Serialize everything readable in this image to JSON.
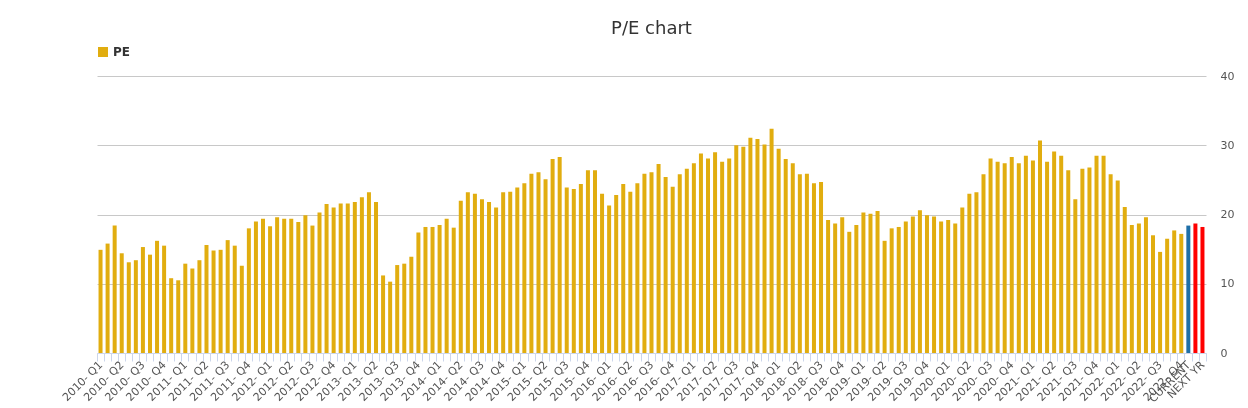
{
  "chart_data": {
    "type": "bar",
    "title": "P/E chart",
    "categories": [
      "2010- Q1",
      null,
      null,
      "2010- Q2",
      null,
      null,
      "2010- Q3",
      null,
      null,
      "2010- Q4",
      null,
      null,
      "2011- Q1",
      null,
      null,
      "2011- Q2",
      null,
      null,
      "2011- Q3",
      null,
      null,
      "2011- Q4",
      null,
      null,
      "2012- Q1",
      null,
      null,
      "2012- Q2",
      null,
      null,
      "2012- Q3",
      null,
      null,
      "2012- Q4",
      null,
      null,
      "2013- Q1",
      null,
      null,
      "2013- Q2",
      null,
      null,
      "2013- Q3",
      null,
      null,
      "2013- Q4",
      null,
      null,
      "2014- Q1",
      null,
      null,
      "2014- Q2",
      null,
      null,
      "2014- Q3",
      null,
      null,
      "2014- Q4",
      null,
      null,
      "2015- Q1",
      null,
      null,
      "2015- Q2",
      null,
      null,
      "2015- Q3",
      null,
      null,
      "2015- Q4",
      null,
      null,
      "2016- Q1",
      null,
      null,
      "2016- Q2",
      null,
      null,
      "2016- Q3",
      null,
      null,
      "2016- Q4",
      null,
      null,
      "2017- Q1",
      null,
      null,
      "2017- Q2",
      null,
      null,
      "2017- Q3",
      null,
      null,
      "2017- Q4",
      null,
      null,
      "2018- Q1",
      null,
      null,
      "2018- Q2",
      null,
      null,
      "2018- Q3",
      null,
      null,
      "2018- Q4",
      null,
      null,
      "2019- Q1",
      null,
      null,
      "2019- Q2",
      null,
      null,
      "2019- Q3",
      null,
      null,
      "2019- Q4",
      null,
      null,
      "2020- Q1",
      null,
      null,
      "2020- Q2",
      null,
      null,
      "2020- Q3",
      null,
      null,
      "2020- Q4",
      null,
      null,
      "2021- Q1",
      null,
      null,
      "2021- Q2",
      null,
      null,
      "2021- Q3",
      null,
      null,
      "2021- Q4",
      null,
      null,
      "2022- Q1",
      null,
      null,
      "2022- Q2",
      null,
      null,
      "2022- Q3",
      null,
      null,
      "2022- Q4",
      "CURRENT",
      null,
      "NEXT YR"
    ],
    "series": [
      {
        "name": "PE",
        "color": "#e1ad0f",
        "values": [
          14.9,
          15.8,
          18.4,
          14.4,
          13.1,
          13.4,
          15.3,
          14.2,
          16.2,
          15.5,
          10.8,
          10.5,
          12.9,
          12.2,
          13.4,
          15.6,
          14.8,
          14.9,
          16.3,
          15.5,
          12.6,
          18.0,
          19.0,
          19.4,
          18.3,
          19.6,
          19.4,
          19.4,
          18.9,
          19.9,
          18.4,
          20.3,
          21.5,
          21.0,
          21.6,
          21.6,
          21.8,
          22.5,
          23.2,
          21.8,
          11.2,
          10.3,
          12.7,
          12.9,
          13.9,
          17.4,
          18.2,
          18.2,
          18.5,
          19.4,
          18.1,
          22.0,
          23.2,
          23.0,
          22.2,
          21.8,
          21.0,
          23.2,
          23.3,
          23.9,
          24.5,
          25.9,
          26.1,
          25.1,
          28.0,
          28.3,
          23.9,
          23.7,
          24.4,
          26.4,
          26.4,
          23.0,
          21.3,
          22.8,
          24.4,
          23.3,
          24.5,
          25.9,
          26.1,
          27.3,
          25.4,
          24.0,
          25.8,
          26.6,
          27.4,
          28.8,
          28.1,
          29.0,
          27.6,
          28.1,
          30.0,
          29.8,
          31.1,
          30.9,
          30.1,
          32.4,
          29.5,
          28.0,
          27.4,
          25.8,
          25.9,
          24.5,
          24.7,
          19.2,
          18.7,
          19.6,
          17.5,
          18.5,
          20.3,
          20.1,
          20.5,
          16.2,
          18.0,
          18.2,
          19.0,
          19.7,
          20.6,
          19.9,
          19.7,
          19.0,
          19.2,
          18.7,
          21.0,
          23.0,
          23.2,
          25.8,
          28.1,
          27.6,
          27.4,
          28.3,
          27.4,
          28.5,
          27.8,
          30.7,
          27.6,
          29.1,
          28.5,
          26.4,
          22.2,
          26.6,
          26.8,
          28.5,
          28.5,
          25.8,
          24.9,
          21.1,
          18.5,
          18.7,
          19.6,
          17.0,
          14.6,
          16.5,
          17.7,
          17.2,
          18.4,
          18.7,
          18.2
        ],
        "colors": [
          "#e1ad0f",
          "#e1ad0f",
          "#e1ad0f",
          "#e1ad0f",
          "#e1ad0f",
          "#e1ad0f",
          "#e1ad0f",
          "#e1ad0f",
          "#e1ad0f",
          "#e1ad0f",
          "#e1ad0f",
          "#e1ad0f",
          "#e1ad0f",
          "#e1ad0f",
          "#e1ad0f",
          "#e1ad0f",
          "#e1ad0f",
          "#e1ad0f",
          "#e1ad0f",
          "#e1ad0f",
          "#e1ad0f",
          "#e1ad0f",
          "#e1ad0f",
          "#e1ad0f",
          "#e1ad0f",
          "#e1ad0f",
          "#e1ad0f",
          "#e1ad0f",
          "#e1ad0f",
          "#e1ad0f",
          "#e1ad0f",
          "#e1ad0f",
          "#e1ad0f",
          "#e1ad0f",
          "#e1ad0f",
          "#e1ad0f",
          "#e1ad0f",
          "#e1ad0f",
          "#e1ad0f",
          "#e1ad0f",
          "#e1ad0f",
          "#e1ad0f",
          "#e1ad0f",
          "#e1ad0f",
          "#e1ad0f",
          "#e1ad0f",
          "#e1ad0f",
          "#e1ad0f",
          "#e1ad0f",
          "#e1ad0f",
          "#e1ad0f",
          "#e1ad0f",
          "#e1ad0f",
          "#e1ad0f",
          "#e1ad0f",
          "#e1ad0f",
          "#e1ad0f",
          "#e1ad0f",
          "#e1ad0f",
          "#e1ad0f",
          "#e1ad0f",
          "#e1ad0f",
          "#e1ad0f",
          "#e1ad0f",
          "#e1ad0f",
          "#e1ad0f",
          "#e1ad0f",
          "#e1ad0f",
          "#e1ad0f",
          "#e1ad0f",
          "#e1ad0f",
          "#e1ad0f",
          "#e1ad0f",
          "#e1ad0f",
          "#e1ad0f",
          "#e1ad0f",
          "#e1ad0f",
          "#e1ad0f",
          "#e1ad0f",
          "#e1ad0f",
          "#e1ad0f",
          "#e1ad0f",
          "#e1ad0f",
          "#e1ad0f",
          "#e1ad0f",
          "#e1ad0f",
          "#e1ad0f",
          "#e1ad0f",
          "#e1ad0f",
          "#e1ad0f",
          "#e1ad0f",
          "#e1ad0f",
          "#e1ad0f",
          "#e1ad0f",
          "#e1ad0f",
          "#e1ad0f",
          "#e1ad0f",
          "#e1ad0f",
          "#e1ad0f",
          "#e1ad0f",
          "#e1ad0f",
          "#e1ad0f",
          "#e1ad0f",
          "#e1ad0f",
          "#e1ad0f",
          "#e1ad0f",
          "#e1ad0f",
          "#e1ad0f",
          "#e1ad0f",
          "#e1ad0f",
          "#e1ad0f",
          "#e1ad0f",
          "#e1ad0f",
          "#e1ad0f",
          "#e1ad0f",
          "#e1ad0f",
          "#e1ad0f",
          "#e1ad0f",
          "#e1ad0f",
          "#e1ad0f",
          "#e1ad0f",
          "#e1ad0f",
          "#e1ad0f",
          "#e1ad0f",
          "#e1ad0f",
          "#e1ad0f",
          "#e1ad0f",
          "#e1ad0f",
          "#e1ad0f",
          "#e1ad0f",
          "#e1ad0f",
          "#e1ad0f",
          "#e1ad0f",
          "#e1ad0f",
          "#e1ad0f",
          "#e1ad0f",
          "#e1ad0f",
          "#e1ad0f",
          "#e1ad0f",
          "#e1ad0f",
          "#e1ad0f",
          "#e1ad0f",
          "#e1ad0f",
          "#e1ad0f",
          "#e1ad0f",
          "#e1ad0f",
          "#e1ad0f",
          "#e1ad0f",
          "#e1ad0f",
          "#e1ad0f",
          "#e1ad0f",
          "#e1ad0f",
          "#e1ad0f",
          "#e1ad0f",
          "#1f6fa8",
          "#ff0000",
          "#ff0000"
        ]
      }
    ],
    "ylim": [
      0,
      40
    ],
    "yticks": [
      0,
      10,
      20,
      30,
      40
    ],
    "grid": "y",
    "legend": "top"
  }
}
